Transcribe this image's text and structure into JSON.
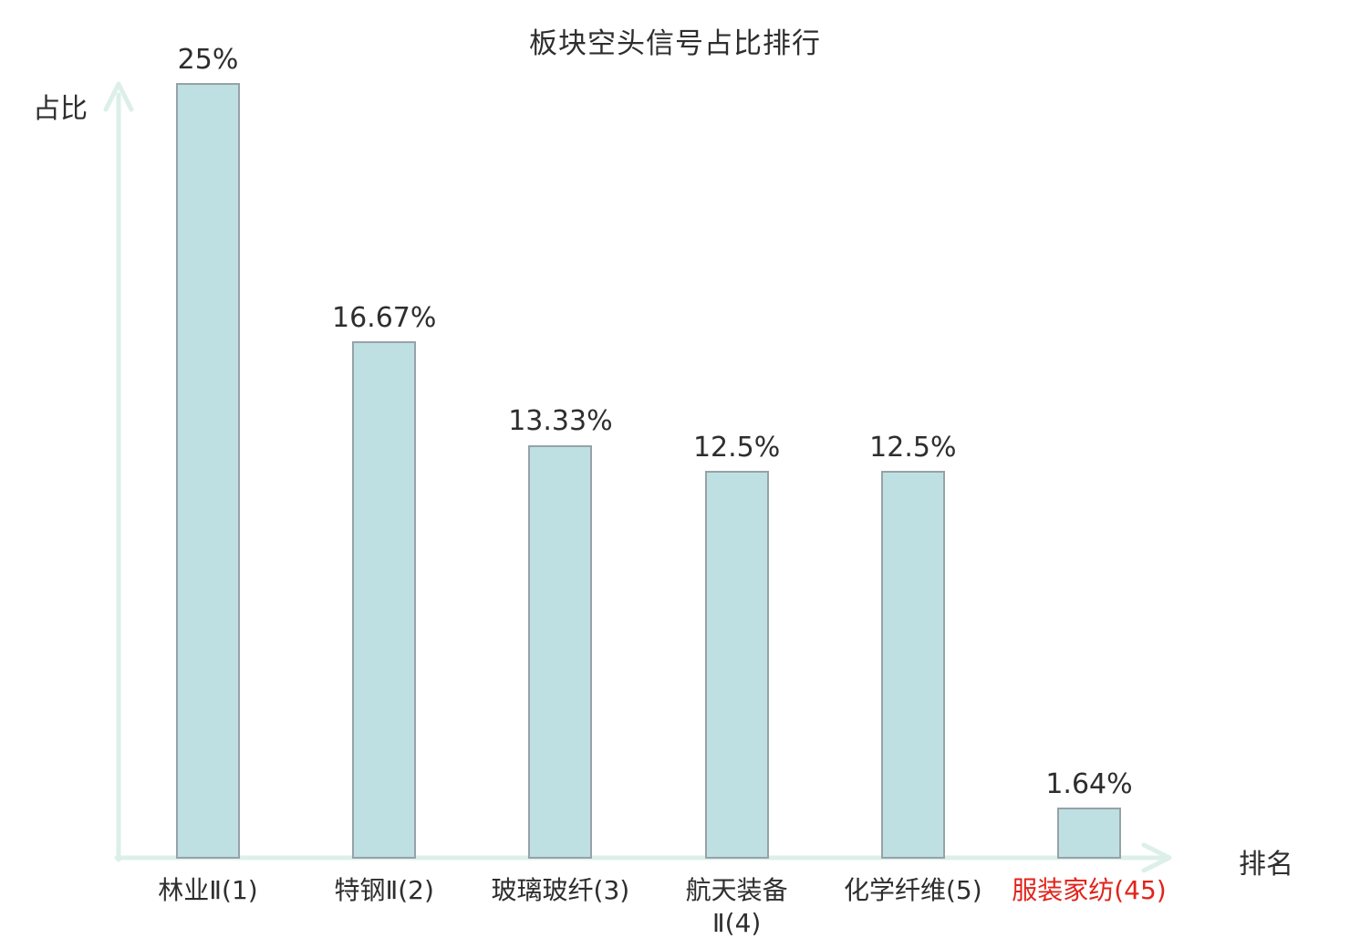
{
  "chart_data": {
    "type": "bar",
    "title": "板块空头信号占比排行",
    "ylabel": "占比",
    "xlabel": "排名",
    "categories": [
      "林业Ⅱ(1)",
      "特钢Ⅱ(2)",
      "玻璃玻纤(3)",
      "航天装备\nⅡ(4)",
      "化学纤维(5)",
      "服装家纺(45)"
    ],
    "values": [
      25,
      16.67,
      13.33,
      12.5,
      12.5,
      1.64
    ],
    "value_labels": [
      "25%",
      "16.67%",
      "13.33%",
      "12.5%",
      "12.5%",
      "1.64%"
    ],
    "highlighted_category_index": 5,
    "ylim": [
      0,
      25
    ],
    "grid": false,
    "legend": "none",
    "y_ticks": [],
    "x_ticks": []
  },
  "colors": {
    "bar_fill": "#bfe0e2",
    "bar_border": "#96a2a8",
    "axis": "#dcefe9",
    "text": "#2e2e2e",
    "highlight": "#e2231a"
  }
}
